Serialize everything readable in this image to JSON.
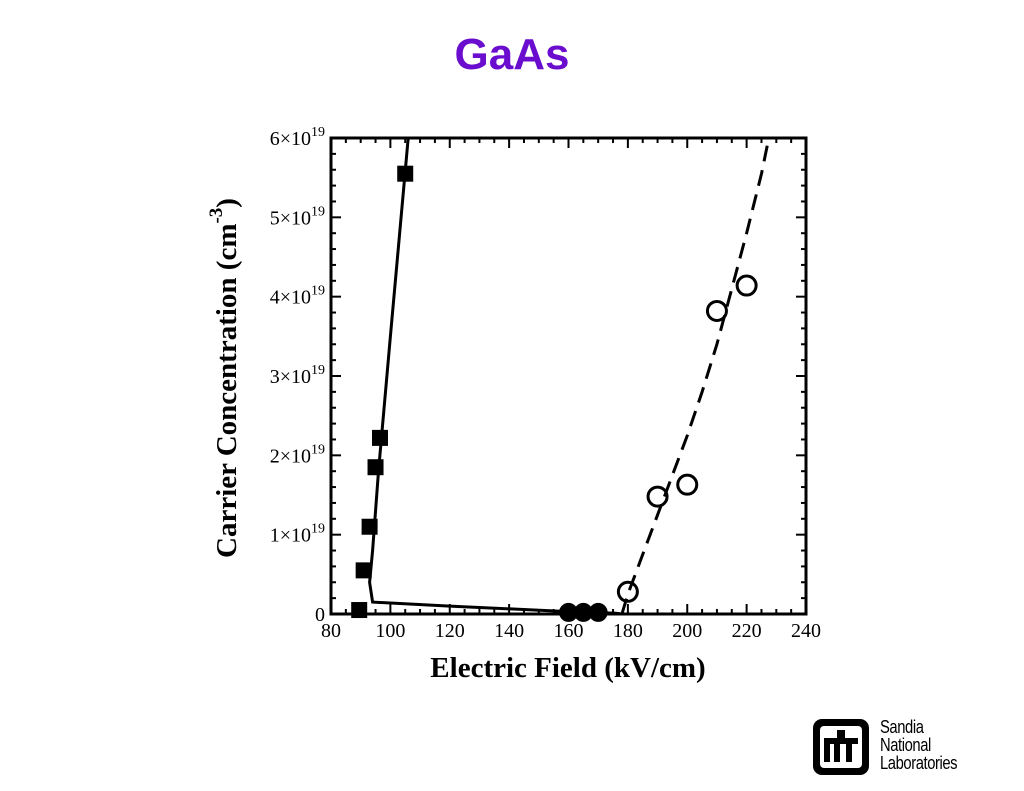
{
  "slide": {
    "title": "GaAs",
    "title_color": "#6a0dce"
  },
  "chart_data": {
    "type": "scatter",
    "title": "",
    "xlabel": "Electric Field (kV/cm)",
    "ylabel_main": "Carrier Concentration (cm",
    "ylabel_sup": "-3",
    "ylabel_close": ")",
    "xlim": [
      80,
      240
    ],
    "ylim": [
      0,
      6e+19
    ],
    "x_ticks": [
      80,
      100,
      120,
      140,
      160,
      180,
      200,
      220,
      240
    ],
    "x_tick_labels": [
      "80",
      "100",
      "120",
      "140",
      "160",
      "180",
      "200",
      "220",
      "240"
    ],
    "y_ticks": [
      0,
      1e+19,
      2e+19,
      3e+19,
      4e+19,
      5e+19,
      6e+19
    ],
    "y_tick_labels": [
      {
        "mantissa": "0",
        "exp": ""
      },
      {
        "mantissa": "1×10",
        "exp": "19"
      },
      {
        "mantissa": "2×10",
        "exp": "19"
      },
      {
        "mantissa": "3×10",
        "exp": "19"
      },
      {
        "mantissa": "4×10",
        "exp": "19"
      },
      {
        "mantissa": "5×10",
        "exp": "19"
      },
      {
        "mantissa": "6×10",
        "exp": "19"
      }
    ],
    "grid": false,
    "series": [
      {
        "marker": "filled-square",
        "x": [
          89.5,
          91,
          93,
          95,
          96.5,
          105
        ],
        "y": [
          5e+17,
          5.5e+18,
          1.1e+19,
          1.85e+19,
          2.22e+19,
          5.55e+19
        ]
      },
      {
        "marker": "filled-circle",
        "x": [
          160,
          165,
          170
        ],
        "y": [
          2e+17,
          2e+17,
          2e+17
        ]
      },
      {
        "marker": "open-circle",
        "x": [
          180,
          190,
          200,
          210,
          220
        ],
        "y": [
          2.8e+18,
          1.48e+19,
          1.63e+19,
          3.82e+19,
          4.14e+19
        ]
      }
    ],
    "curves": [
      {
        "style": "solid",
        "x": [
          106,
          100,
          96,
          94,
          93,
          94,
          120,
          160,
          176,
          178
        ],
        "y": [
          6e+19,
          3.5e+19,
          1.8e+19,
          8e+18,
          4e+18,
          1.5e+18,
          1e+18,
          3e+17,
          1e+17,
          0
        ]
      },
      {
        "style": "dashed",
        "x": [
          178,
          180,
          185,
          190,
          195,
          200,
          205,
          210,
          215,
          220,
          225,
          228
        ],
        "y": [
          0,
          2.5e+18,
          7.5e+18,
          1.25e+19,
          1.75e+19,
          2.25e+19,
          2.8e+19,
          3.4e+19,
          4.1e+19,
          4.8e+19,
          5.55e+19,
          6.1e+19
        ]
      }
    ]
  },
  "logo": {
    "line1": "Sandia",
    "line2": "National",
    "line3": "Laboratories"
  }
}
